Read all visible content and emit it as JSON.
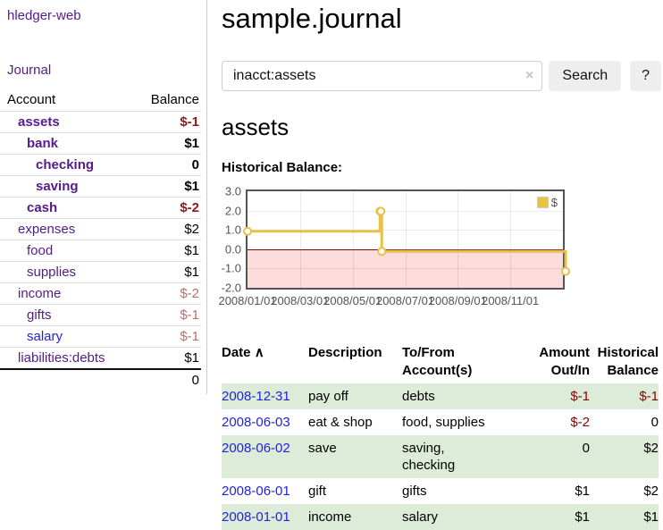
{
  "colors": {
    "link_purple": "#551a8b",
    "link_blue": "#2222dd",
    "negative_dark": "#8b1a1a",
    "negative_light": "#bb6f6f",
    "table_negative": "#8b0000",
    "chart_line": "#e9c04a",
    "chart_negative_fill": "#fbdbdb",
    "zero_line": "#8b0000",
    "row_green": "#ddecd8"
  },
  "app": {
    "brand": "hledger-web"
  },
  "nav": {
    "journal": "Journal"
  },
  "sidebar": {
    "columns": {
      "account": "Account",
      "balance": "Balance"
    },
    "accounts": [
      {
        "name": "assets",
        "balance": "$-1"
      },
      {
        "name": "bank",
        "balance": "$1"
      },
      {
        "name": "checking",
        "balance": "0"
      },
      {
        "name": "saving",
        "balance": "$1"
      },
      {
        "name": "cash",
        "balance": "$-2"
      },
      {
        "name": "expenses",
        "balance": "$2"
      },
      {
        "name": "food",
        "balance": "$1"
      },
      {
        "name": "supplies",
        "balance": "$1"
      },
      {
        "name": "income",
        "balance": "$-2"
      },
      {
        "name": "gifts",
        "balance": "$-1"
      },
      {
        "name": "salary",
        "balance": "$-1"
      },
      {
        "name": "liabilities:debts",
        "balance": "$1"
      }
    ],
    "total": "0"
  },
  "header": {
    "title": "sample.journal"
  },
  "search": {
    "value": "inacct:assets",
    "clear_icon": "×",
    "button": "Search",
    "help": "?"
  },
  "account_page": {
    "heading": "assets",
    "chart_title": "Historical Balance:"
  },
  "chart_data": {
    "type": "line",
    "title": "Historical Balance",
    "legend": [
      {
        "label": "$",
        "color": "#e9c04a"
      }
    ],
    "legend_position": "top-right",
    "grid": true,
    "ylim": [
      -2,
      3
    ],
    "y_ticks": [
      "3.0",
      "2.0",
      "1.0",
      "0.0",
      "-1.0",
      "-2.0"
    ],
    "x_ticks": [
      "2008/01/01",
      "2008/03/01",
      "2008/05/01",
      "2008/07/01",
      "2008/09/01",
      "2008/11/01"
    ],
    "xrange": [
      "2008-01-01",
      "2009-01-01"
    ],
    "series": [
      {
        "name": "$",
        "color": "#e9c04a",
        "step": true,
        "points": [
          [
            "2008-01-01",
            1
          ],
          [
            "2008-06-01",
            2
          ],
          [
            "2008-06-02",
            2
          ],
          [
            "2008-06-03",
            0
          ],
          [
            "2008-12-31",
            -1
          ]
        ]
      }
    ],
    "negative_region_fill": "#fbdbdb"
  },
  "table": {
    "headers": {
      "date": "Date",
      "sort_icon": "∧",
      "description": "Description",
      "tofrom": "To/From\nAccount(s)",
      "amount": "Amount\nOut/In",
      "balance": "Historical\nBalance"
    },
    "rows": [
      {
        "date": "2008-12-31",
        "description": "pay off",
        "accounts": "debts",
        "amount": "$-1",
        "balance": "$-1"
      },
      {
        "date": "2008-06-03",
        "description": "eat & shop",
        "accounts": "food, supplies",
        "amount": "$-2",
        "balance": "0"
      },
      {
        "date": "2008-06-02",
        "description": "save",
        "accounts": "saving,\nchecking",
        "amount": "0",
        "balance": "$2"
      },
      {
        "date": "2008-06-01",
        "description": "gift",
        "accounts": "gifts",
        "amount": "$1",
        "balance": "$2"
      },
      {
        "date": "2008-01-01",
        "description": "income",
        "accounts": "salary",
        "amount": "$1",
        "balance": "$1"
      }
    ]
  }
}
